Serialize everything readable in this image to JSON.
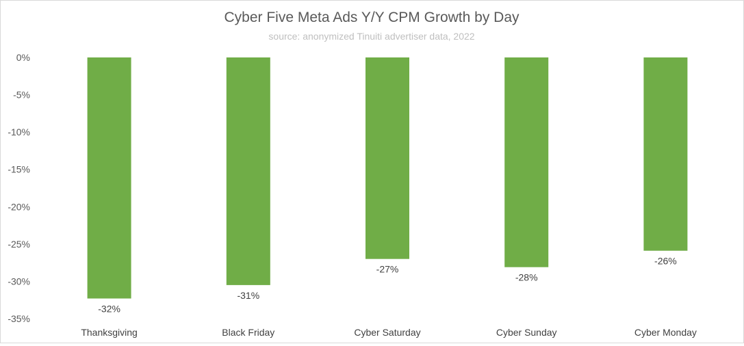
{
  "chart_data": {
    "type": "bar",
    "title": "Cyber Five Meta Ads Y/Y CPM Growth by Day",
    "subtitle": "source: anonymized Tinuiti advertiser data, 2022",
    "categories": [
      "Thanksgiving",
      "Black Friday",
      "Cyber Saturday",
      "Cyber Sunday",
      "Cyber Monday"
    ],
    "values": [
      -32.3,
      -30.5,
      -27.0,
      -28.1,
      -25.9
    ],
    "data_labels": [
      "-32%",
      "-31%",
      "-27%",
      "-28%",
      "-26%"
    ],
    "yticks": [
      0,
      -5,
      -10,
      -15,
      -20,
      -25,
      -30,
      -35
    ],
    "ytick_labels": [
      "0%",
      "-5%",
      "-10%",
      "-15%",
      "-20%",
      "-25%",
      "-30%",
      "-35%"
    ],
    "ylim": [
      -35,
      0
    ],
    "xlabel": "",
    "ylabel": "",
    "grid": false,
    "legend": "none",
    "bar_color": "#70ad47"
  }
}
